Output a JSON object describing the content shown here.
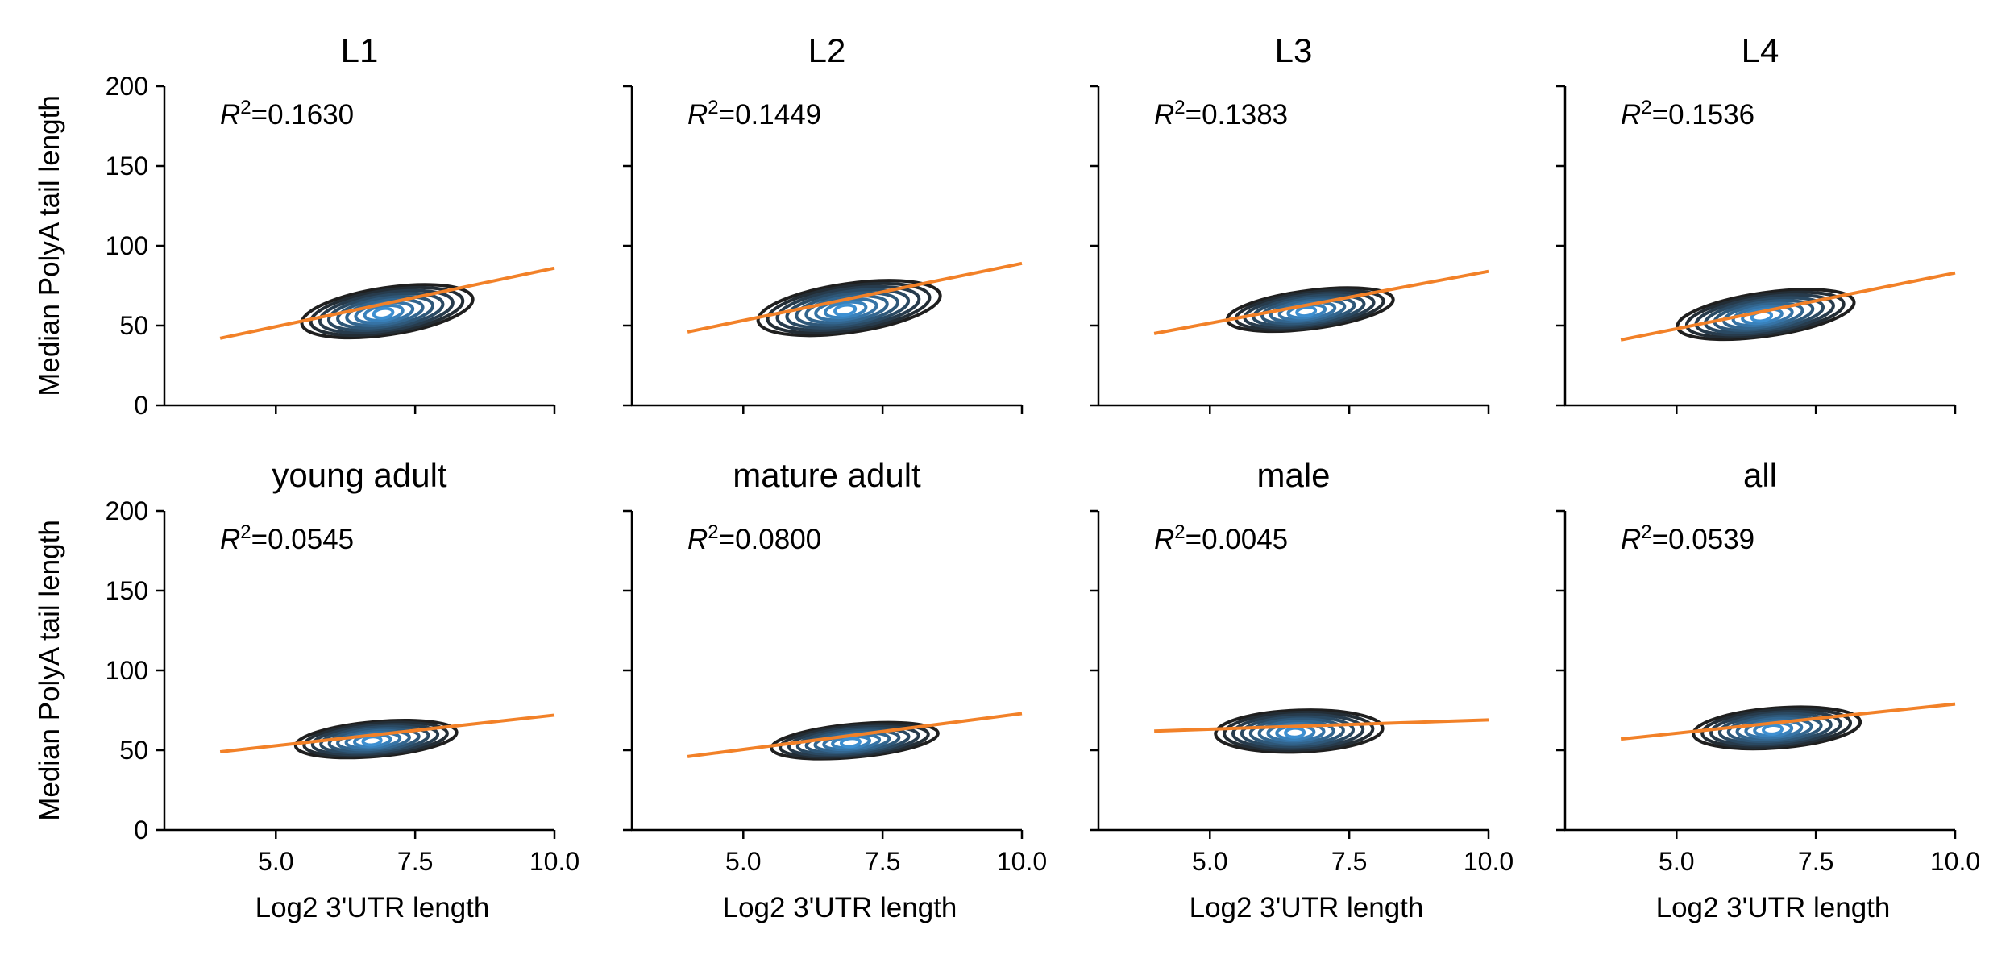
{
  "chart_data": {
    "type": "contour",
    "layout": "2 rows x 4 columns, shared axes",
    "xlabel": "Log2 3'UTR length",
    "ylabel": "Median PolyA tail length",
    "xlim": [
      3.0,
      10.0
    ],
    "ylim": [
      0,
      200
    ],
    "xticks": [
      "5.0",
      "7.5",
      "10.0"
    ],
    "yticks": [
      "0",
      "50",
      "100",
      "150",
      "200"
    ],
    "grid": false,
    "colors": {
      "contour_outer": "#1f1f1f",
      "contour_inner": "#3d8fd1",
      "regression_line": "#f28128"
    },
    "panels": [
      {
        "title": "L1",
        "r2_label": "=0.1630",
        "fit": {
          "x": [
            4.0,
            10.0
          ],
          "y": [
            42,
            86
          ]
        },
        "density": {
          "center": [
            7.0,
            59
          ],
          "spread_x": 1.55,
          "spread_y": 24,
          "slope": 5.2
        }
      },
      {
        "title": "L2",
        "r2_label": "=0.1449",
        "fit": {
          "x": [
            4.0,
            10.0
          ],
          "y": [
            46,
            89
          ]
        },
        "density": {
          "center": [
            6.9,
            61
          ],
          "spread_x": 1.65,
          "spread_y": 25,
          "slope": 5.0
        }
      },
      {
        "title": "L3",
        "r2_label": "=0.1383",
        "fit": {
          "x": [
            4.0,
            10.0
          ],
          "y": [
            45,
            84
          ]
        },
        "density": {
          "center": [
            6.8,
            60
          ],
          "spread_x": 1.5,
          "spread_y": 19,
          "slope": 4.4
        }
      },
      {
        "title": "L4",
        "r2_label": "=0.1536",
        "fit": {
          "x": [
            4.0,
            10.0
          ],
          "y": [
            41,
            83
          ]
        },
        "density": {
          "center": [
            6.6,
            57
          ],
          "spread_x": 1.6,
          "spread_y": 22,
          "slope": 5.0
        }
      },
      {
        "title": "young adult",
        "r2_label": "=0.0545",
        "fit": {
          "x": [
            4.0,
            10.0
          ],
          "y": [
            49,
            72
          ]
        },
        "density": {
          "center": [
            6.8,
            57
          ],
          "spread_x": 1.45,
          "spread_y": 17,
          "slope": 3.0
        }
      },
      {
        "title": "mature adult",
        "r2_label": "=0.0800",
        "fit": {
          "x": [
            4.0,
            10.0
          ],
          "y": [
            46,
            73
          ]
        },
        "density": {
          "center": [
            7.0,
            56
          ],
          "spread_x": 1.5,
          "spread_y": 16,
          "slope": 3.2
        }
      },
      {
        "title": "male",
        "r2_label": "=0.0045",
        "fit": {
          "x": [
            4.0,
            10.0
          ],
          "y": [
            62,
            69
          ]
        },
        "density": {
          "center": [
            6.6,
            62
          ],
          "spread_x": 1.5,
          "spread_y": 21,
          "slope": 1.2
        }
      },
      {
        "title": "all",
        "r2_label": "=0.0539",
        "fit": {
          "x": [
            4.0,
            10.0
          ],
          "y": [
            57,
            79
          ]
        },
        "density": {
          "center": [
            6.8,
            64
          ],
          "spread_x": 1.5,
          "spread_y": 20,
          "slope": 2.6
        }
      }
    ]
  }
}
